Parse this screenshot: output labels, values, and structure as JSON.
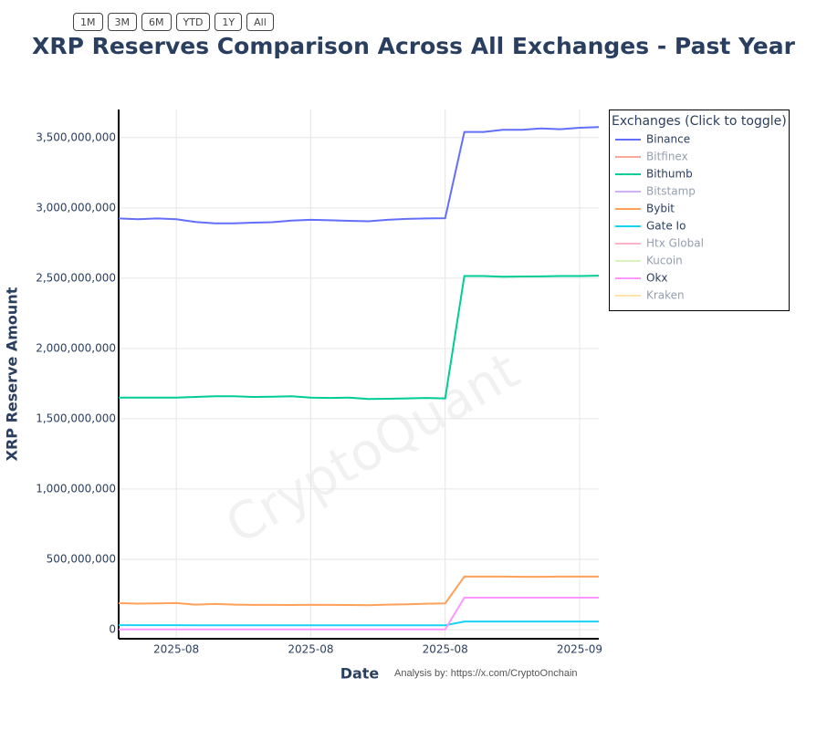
{
  "chart_data": {
    "type": "line",
    "title": "XRP Reserves Comparison Across All Exchanges - Past Year",
    "range_buttons": [
      "1M",
      "3M",
      "6M",
      "YTD",
      "1Y",
      "All"
    ],
    "x_label": "Date",
    "y_label": "XRP Reserve Amount",
    "annotation": "Analysis by: https://x.com/CryptoOnchain",
    "watermark": "CryptoQuant",
    "legend_title": "Exchanges (Click to toggle)",
    "legend_position": "top-right",
    "grid": true,
    "x": [
      null,
      null,
      null,
      "2025-08",
      null,
      null,
      null,
      null,
      null,
      null,
      "2025-08",
      null,
      null,
      null,
      null,
      null,
      null,
      "2025-08",
      null,
      null,
      null,
      null,
      null,
      null,
      "2025-09",
      null
    ],
    "ylim": [
      -65000000,
      3700000000
    ],
    "yticks": [
      0,
      {
        "value": 500000000,
        "label": "500,000,000"
      },
      {
        "value": 1000000000,
        "label": "1,000,000,000"
      },
      {
        "value": 1500000000,
        "label": "1,500,000,000"
      },
      {
        "value": 2000000000,
        "label": "2,000,000,000"
      },
      {
        "value": 2500000000,
        "label": "2,500,000,000"
      },
      {
        "value": 3000000000,
        "label": "3,000,000,000"
      },
      {
        "value": 3500000000,
        "label": "3,500,000,000"
      }
    ],
    "series": [
      {
        "name": "Binance",
        "color": "#636efa",
        "visible": true,
        "values": [
          2925000000,
          2920000000,
          2925000000,
          2920000000,
          2900000000,
          2890000000,
          2890000000,
          2895000000,
          2898000000,
          2910000000,
          2915000000,
          2912000000,
          2908000000,
          2905000000,
          2915000000,
          2922000000,
          2925000000,
          2927000000,
          3540000000,
          3540000000,
          3555000000,
          3555000000,
          3565000000,
          3560000000,
          3570000000,
          3575000000
        ]
      },
      {
        "name": "Bitfinex",
        "color": "#ef553b",
        "visible": false
      },
      {
        "name": "Bithumb",
        "color": "#00cc96",
        "visible": true,
        "values": [
          1650000000,
          1650000000,
          1650000000,
          1650000000,
          1655000000,
          1660000000,
          1660000000,
          1655000000,
          1657000000,
          1660000000,
          1650000000,
          1648000000,
          1650000000,
          1640000000,
          1642000000,
          1645000000,
          1648000000,
          1645000000,
          2515000000,
          2515000000,
          2510000000,
          2512000000,
          2513000000,
          2515000000,
          2515000000,
          2518000000
        ]
      },
      {
        "name": "Bitstamp",
        "color": "#ab63fa",
        "visible": false
      },
      {
        "name": "Bybit",
        "color": "#ffa15a",
        "visible": true,
        "values": [
          188000000,
          185000000,
          187000000,
          189000000,
          178000000,
          182000000,
          178000000,
          176000000,
          176000000,
          175000000,
          177000000,
          176000000,
          175000000,
          174000000,
          178000000,
          180000000,
          184000000,
          187000000,
          377000000,
          377000000,
          377000000,
          376000000,
          376000000,
          377000000,
          377000000,
          377000000
        ]
      },
      {
        "name": "Gate Io",
        "color": "#19d3f3",
        "visible": true,
        "values": [
          32000000,
          32000000,
          32000000,
          32000000,
          31000000,
          31000000,
          31000000,
          31000000,
          31000000,
          31000000,
          31000000,
          31000000,
          31000000,
          31000000,
          31000000,
          31000000,
          31000000,
          31000000,
          58000000,
          58000000,
          58000000,
          58000000,
          58000000,
          58000000,
          58000000,
          58000000
        ]
      },
      {
        "name": "Htx Global",
        "color": "#ff6692",
        "visible": false
      },
      {
        "name": "Kucoin",
        "color": "#b6e880",
        "visible": false
      },
      {
        "name": "Okx",
        "color": "#ff97ff",
        "visible": true,
        "values": [
          2000000,
          2000000,
          2000000,
          2000000,
          2000000,
          2000000,
          2000000,
          2000000,
          2000000,
          2000000,
          2000000,
          2000000,
          2000000,
          2000000,
          2000000,
          2000000,
          2000000,
          2000000,
          227000000,
          227000000,
          227000000,
          227000000,
          227000000,
          227000000,
          227000000,
          227000000
        ]
      },
      {
        "name": "Kraken",
        "color": "#fecb52",
        "visible": false
      }
    ]
  }
}
